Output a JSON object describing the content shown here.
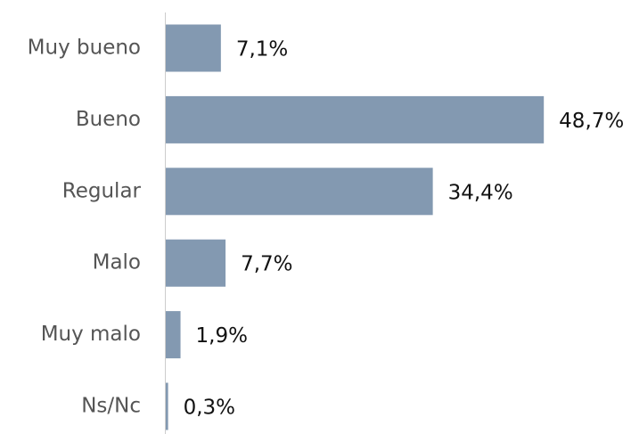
{
  "chart_data": {
    "type": "bar",
    "orientation": "horizontal",
    "categories": [
      "Muy bueno",
      "Bueno",
      "Regular",
      "Malo",
      "Muy malo",
      "Ns/Nc"
    ],
    "values": [
      7.1,
      48.7,
      34.4,
      7.7,
      1.9,
      0.3
    ],
    "value_labels": [
      "7,1%",
      "48,7%",
      "34,4%",
      "7,7%",
      "1,9%",
      "0,3%"
    ],
    "color": "#8399b1"
  }
}
